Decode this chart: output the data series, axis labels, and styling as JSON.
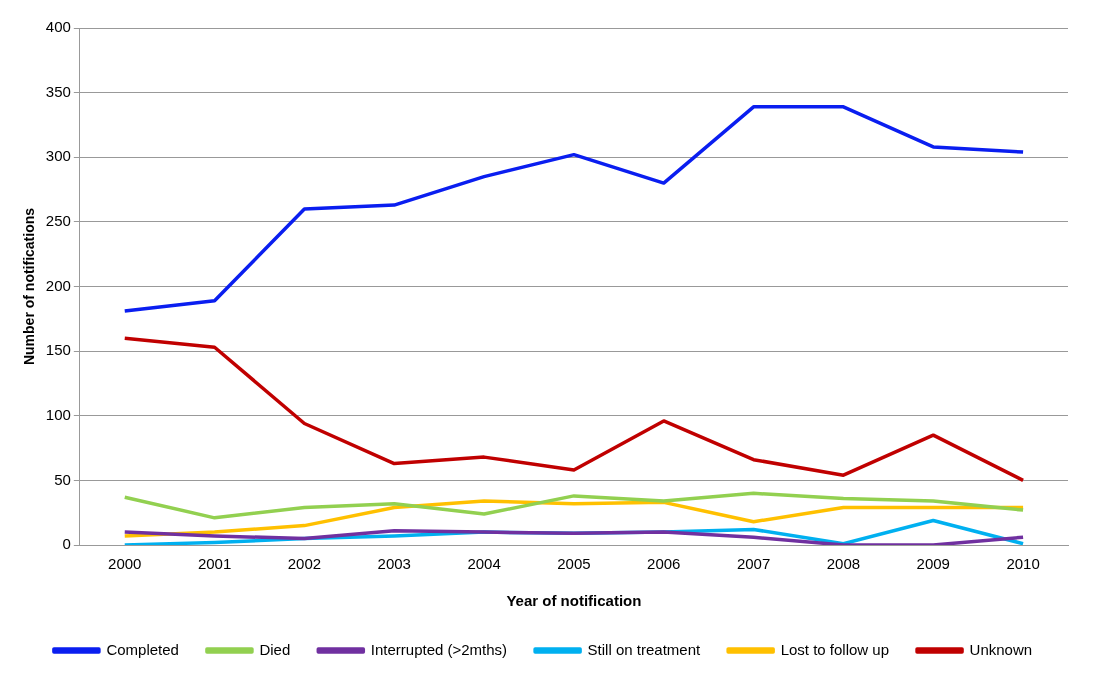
{
  "chart_data": {
    "type": "line",
    "xlabel": "Year of notification",
    "ylabel": "Number of notifications",
    "categories": [
      "2000",
      "2001",
      "2002",
      "2003",
      "2004",
      "2005",
      "2006",
      "2007",
      "2008",
      "2009",
      "2010"
    ],
    "series": [
      {
        "name": "Completed",
        "color": "#0a1ef0",
        "values": [
          181,
          189,
          260,
          263,
          285,
          302,
          280,
          339,
          339,
          308,
          304
        ]
      },
      {
        "name": "Died",
        "color": "#92d050",
        "values": [
          37,
          21,
          29,
          32,
          24,
          38,
          34,
          40,
          36,
          34,
          27
        ]
      },
      {
        "name": "Interrupted (>2mths)",
        "color": "#7030a0",
        "values": [
          10,
          7,
          5,
          11,
          10,
          9,
          10,
          6,
          0,
          0,
          6
        ]
      },
      {
        "name": "Still on treatment",
        "color": "#00b0f0",
        "values": [
          0,
          2,
          5,
          7,
          10,
          9,
          10,
          12,
          1,
          19,
          1
        ]
      },
      {
        "name": "Lost to follow up",
        "color": "#ffc000",
        "values": [
          7,
          10,
          15,
          29,
          34,
          32,
          33,
          18,
          29,
          29,
          29
        ]
      },
      {
        "name": "Unknown",
        "color": "#c00000",
        "values": [
          160,
          153,
          94,
          63,
          68,
          58,
          96,
          66,
          54,
          85,
          50
        ]
      }
    ],
    "ylim": [
      0,
      400
    ],
    "yticks": [
      0,
      50,
      100,
      150,
      200,
      250,
      300,
      350,
      400
    ],
    "grid": "y",
    "legend": "bottom",
    "marker": "none",
    "line_style": "solid"
  }
}
